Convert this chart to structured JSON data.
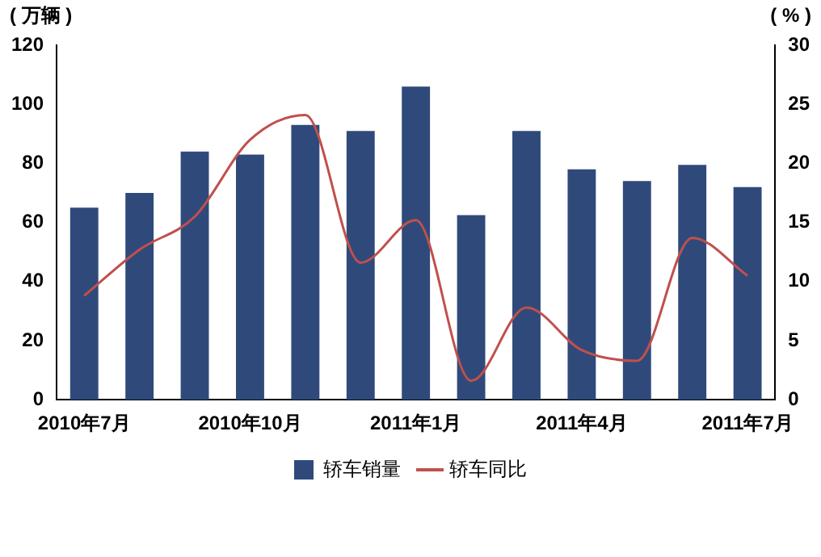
{
  "chart_data": {
    "type": "bar",
    "ylabel": "( 万辆 )",
    "y2label": "( % )",
    "categories": [
      "2010年7月",
      null,
      null,
      "2010年10月",
      null,
      null,
      "2011年1月",
      null,
      null,
      "2011年4月",
      null,
      null,
      "2011年7月"
    ],
    "series": [
      {
        "name": "轿车销量",
        "color": "#2f4a7a",
        "values": [
          65,
          70,
          84,
          83,
          93,
          91,
          106,
          62.5,
          91,
          78,
          74,
          79.5,
          72
        ]
      },
      {
        "name": "轿车同比",
        "type": "line",
        "axis": "y2",
        "color": "#c0504d",
        "values": [
          8.8,
          12.7,
          15.5,
          22,
          24.1,
          11.6,
          15.2,
          1.6,
          7.8,
          4.2,
          3.3,
          13.7,
          10.5
        ]
      }
    ],
    "ylim": [
      0,
      120
    ],
    "yticks": [
      0,
      20,
      40,
      60,
      80,
      100,
      120
    ],
    "y2lim": [
      0,
      30
    ],
    "y2ticks": [
      0,
      5,
      10,
      15,
      20,
      25,
      30
    ],
    "grid": false,
    "legend": "bottom",
    "marker": "none",
    "line_style": "solid"
  }
}
